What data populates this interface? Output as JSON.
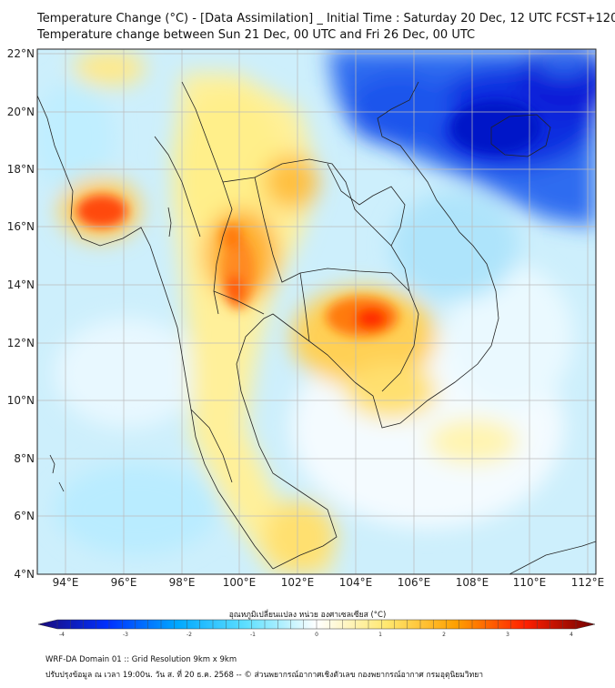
{
  "title_line1": "Temperature Change (°C) - [Data Assimilation] _ Initial Time : Saturday 20 Dec, 12 UTC FCST+120",
  "title_line2": "Temperature change between Sun 21 Dec, 00 UTC and Fri 26 Dec, 00 UTC",
  "map": {
    "lat_labels": [
      "22°N",
      "20°N",
      "18°N",
      "16°N",
      "14°N",
      "12°N",
      "10°N",
      "8°N",
      "6°N",
      "4°N"
    ],
    "lon_labels": [
      "94°E",
      "96°E",
      "98°E",
      "100°E",
      "102°E",
      "104°E",
      "106°E",
      "108°E",
      "110°E",
      "112°E"
    ],
    "cold_color": "#0a2ee0",
    "warm_color": "#ff3a00"
  },
  "colorbar": {
    "title": "อุณหภูมิเปลี่ยนแปลง หน่วย องศาเซลเซียส (°C)",
    "ticks": [
      "-4",
      "-3",
      "-2",
      "-1",
      "0",
      "1",
      "2",
      "3",
      "4"
    ],
    "colors": [
      "#1a0a7a",
      "#0030ff",
      "#00a8ff",
      "#60e0ff",
      "#ffffff",
      "#ffe870",
      "#ffa000",
      "#ff2000",
      "#700000"
    ]
  },
  "footer_line1": "WRF-DA Domain 01 :: Grid Resolution 9km x 9km",
  "footer_line2": "ปรับปรุงข้อมูล ณ เวลา 19:00น. วัน ส. ที่ 20 ธ.ค. 2568 -- © ส่วนพยากรณ์อากาศเชิงตัวเลข กองพยากรณ์อากาศ กรมอุตุนิยมวิทยา"
}
